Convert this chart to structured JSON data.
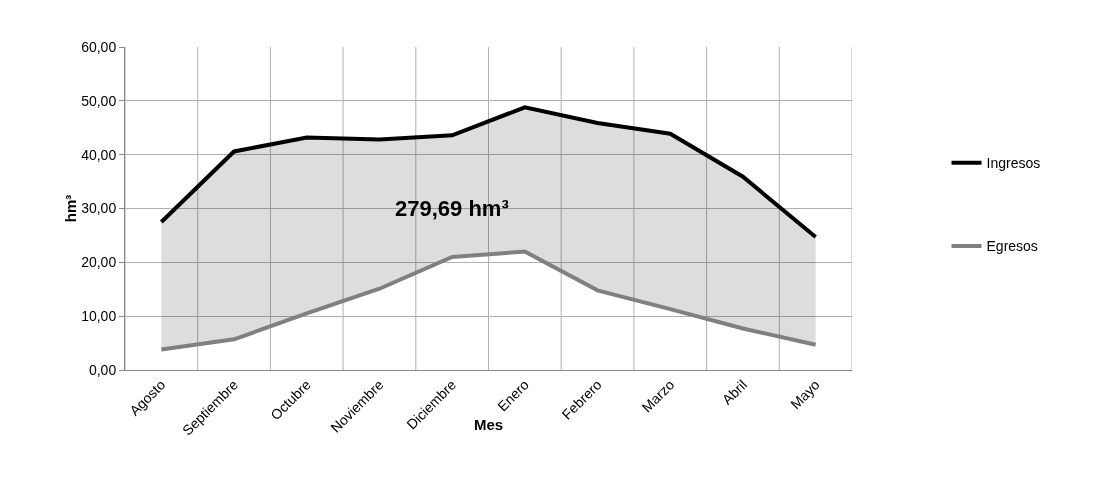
{
  "chart_data": {
    "type": "line",
    "xlabel": "Mes",
    "ylabel": "hm³",
    "categories": [
      "Agosto",
      "Septiembre",
      "Octubre",
      "Noviembre",
      "Diciembre",
      "Enero",
      "Febrero",
      "Marzo",
      "Abril",
      "Mayo"
    ],
    "series": [
      {
        "name": "Ingresos",
        "color": "#000000",
        "values": [
          27.5,
          40.6,
          43.2,
          42.8,
          43.6,
          48.8,
          45.9,
          43.9,
          35.9,
          24.7
        ],
        "lower": [
          3.8,
          5.7,
          10.5,
          15.1,
          21.0,
          22.0,
          14.8,
          11.3,
          7.7,
          4.7
        ],
        "upper": [
          27.5,
          40.6,
          43.2,
          42.8,
          43.6,
          48.8,
          45.9,
          43.9,
          35.9,
          24.7
        ]
      },
      {
        "name": "Egresos",
        "color": "#808080",
        "values": [
          3.8,
          5.7,
          10.5,
          15.1,
          21.0,
          22.0,
          14.8,
          11.3,
          7.7,
          4.7
        ]
      }
    ],
    "annotations": [
      "279,69 hm³"
    ],
    "ylim": [
      0,
      60
    ],
    "yticks": [
      {
        "value": 0,
        "label": "0,00"
      },
      {
        "value": 10,
        "label": "10,00"
      },
      {
        "value": 20,
        "label": "20,00"
      },
      {
        "value": 30,
        "label": "30,00"
      },
      {
        "value": 40,
        "label": "40,00"
      },
      {
        "value": 50,
        "label": "50,00"
      },
      {
        "value": 60,
        "label": "60,00"
      }
    ],
    "grid": true,
    "legend": "right",
    "marker": "none",
    "line_style": "solid"
  }
}
